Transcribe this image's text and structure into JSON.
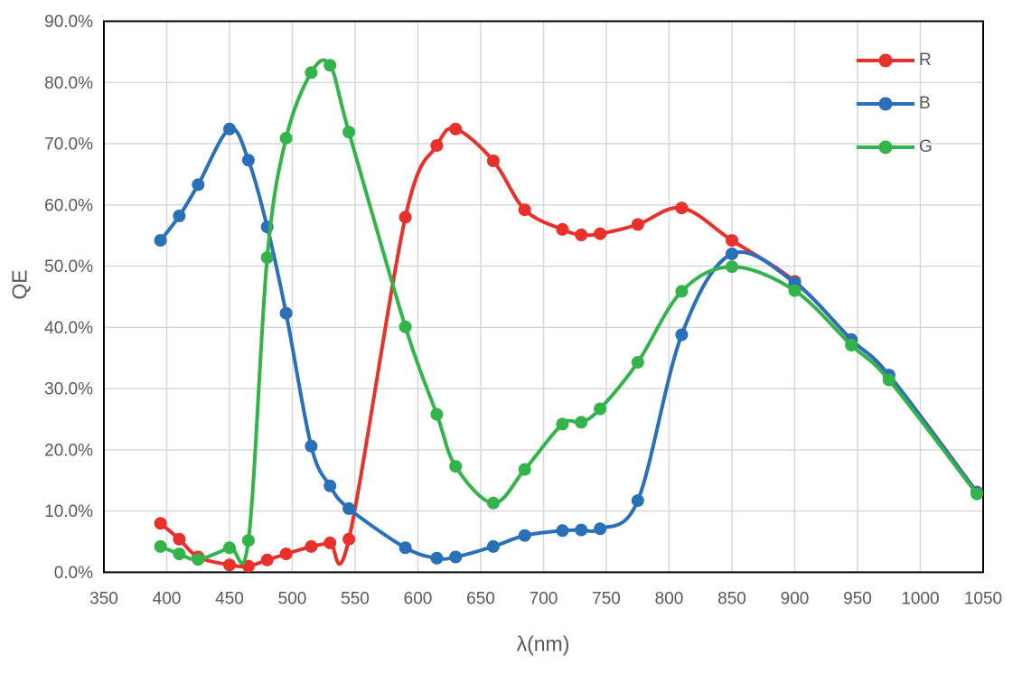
{
  "chart_data": {
    "type": "line",
    "title": "",
    "xlabel": "λ(nm)",
    "ylabel": "QE",
    "x": [
      395,
      410,
      425,
      450,
      465,
      480,
      495,
      515,
      530,
      545,
      590,
      615,
      630,
      660,
      685,
      715,
      730,
      745,
      775,
      810,
      850,
      900,
      945,
      975,
      1045
    ],
    "series": [
      {
        "name": "R",
        "color": "#e8312b",
        "values": [
          8.0,
          5.4,
          2.5,
          1.2,
          1.0,
          2.0,
          3.0,
          4.2,
          4.8,
          5.4,
          58.0,
          69.7,
          72.4,
          67.2,
          59.2,
          56.0,
          55.1,
          55.3,
          56.8,
          59.5,
          54.2,
          47.5,
          38.0,
          32.2,
          13.1
        ]
      },
      {
        "name": "B",
        "color": "#2a70b8",
        "values": [
          54.2,
          58.2,
          63.3,
          72.4,
          67.3,
          56.4,
          42.3,
          20.6,
          14.1,
          10.4,
          4.0,
          2.3,
          2.5,
          4.2,
          6.0,
          6.8,
          6.9,
          7.1,
          11.7,
          38.8,
          52.0,
          47.3,
          38.0,
          32.2,
          13.0
        ]
      },
      {
        "name": "G",
        "color": "#33b44a",
        "values": [
          4.2,
          3.0,
          2.1,
          4.0,
          5.2,
          51.4,
          70.9,
          81.6,
          82.8,
          71.9,
          40.1,
          25.8,
          17.3,
          11.3,
          16.8,
          24.2,
          24.5,
          26.7,
          34.3,
          45.9,
          49.9,
          46.0,
          37.1,
          31.4,
          12.8
        ]
      }
    ],
    "xlim": [
      350,
      1050
    ],
    "ylim": [
      0,
      90
    ],
    "x_tick_labels": [
      "350",
      "400",
      "450",
      "500",
      "550",
      "600",
      "650",
      "700",
      "750",
      "800",
      "850",
      "900",
      "950",
      "1000",
      "1050"
    ],
    "y_tick_labels": [
      "0.0%",
      "10.0%",
      "20.0%",
      "30.0%",
      "40.0%",
      "50.0%",
      "60.0%",
      "70.0%",
      "80.0%",
      "90.0%"
    ],
    "grid": true,
    "smoothed_lines": true,
    "legend_position": "top-right-inside",
    "colors": {
      "background": "#ffffff",
      "gridline": "#d6d6d6",
      "plot_border": "#000000",
      "axis_text": "#595959"
    }
  }
}
